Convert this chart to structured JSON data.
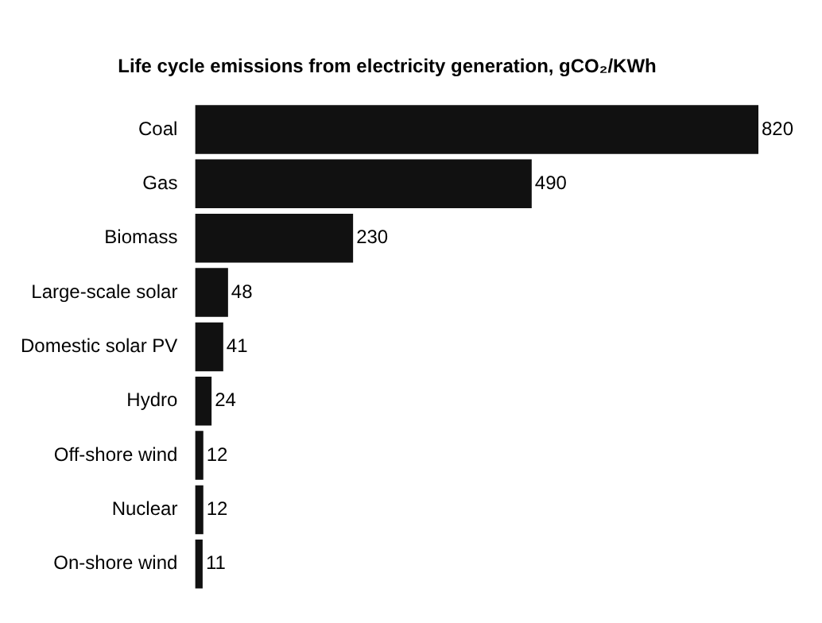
{
  "chart_data": {
    "type": "bar",
    "orientation": "horizontal",
    "title": "Life cycle emissions from electricity generation, gCO₂/KWh",
    "categories": [
      "Coal",
      "Gas",
      "Biomass",
      "Large-scale solar",
      "Domestic solar PV",
      "Hydro",
      "Off-shore wind",
      "Nuclear",
      "On-shore wind"
    ],
    "values": [
      820,
      490,
      230,
      48,
      41,
      24,
      12,
      12,
      11
    ],
    "color": "#111111",
    "xlim": [
      0,
      820
    ],
    "data_labels": true
  }
}
